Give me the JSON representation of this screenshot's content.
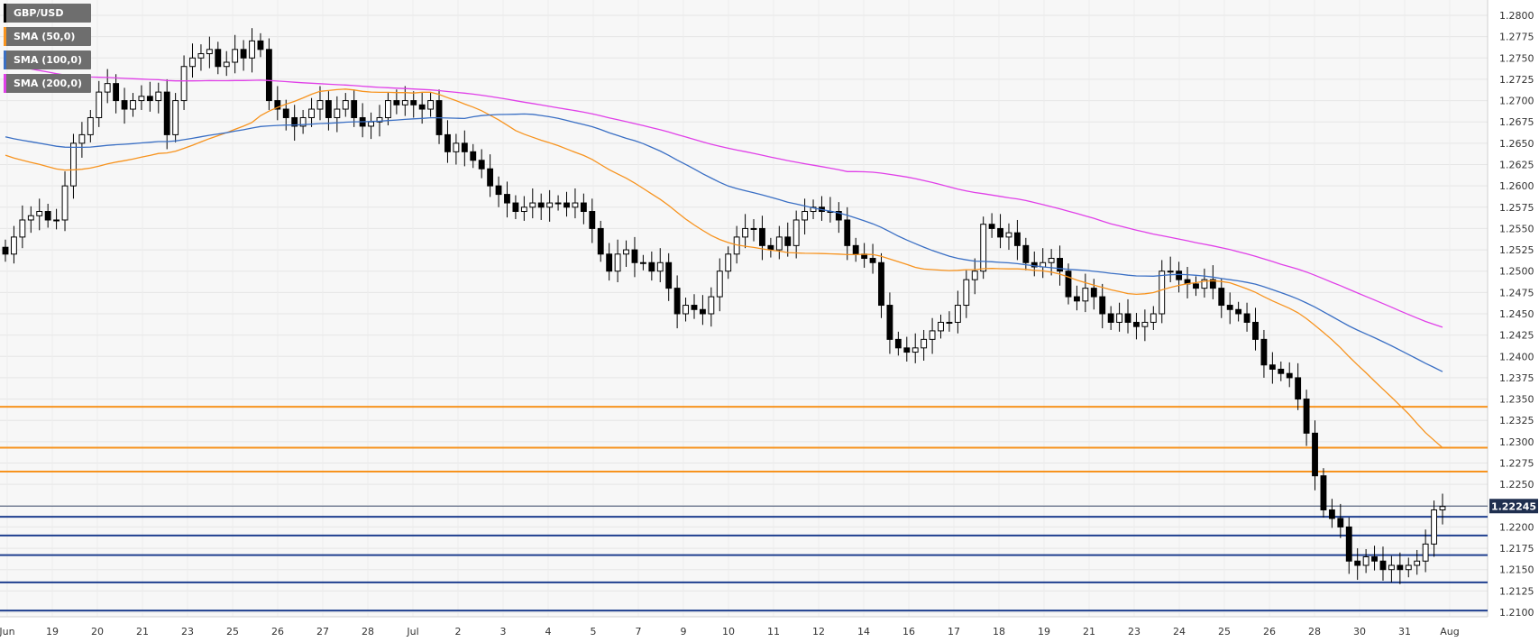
{
  "chart_data": {
    "type": "candlestick",
    "symbol": "GBP/USD",
    "current_price": "1.22245",
    "y_ticks": [
      "1.2800",
      "1.2775",
      "1.2750",
      "1.2725",
      "1.2700",
      "1.2675",
      "1.2650",
      "1.2625",
      "1.2600",
      "1.2575",
      "1.2550",
      "1.2525",
      "1.2500",
      "1.2475",
      "1.2450",
      "1.2425",
      "1.2400",
      "1.2375",
      "1.2350",
      "1.2325",
      "1.2300",
      "1.2275",
      "1.2250",
      "1.2225",
      "1.2200",
      "1.2175",
      "1.2150",
      "1.2125",
      "1.2100"
    ],
    "x_ticks": [
      "Jun",
      "19",
      "20",
      "21",
      "23",
      "25",
      "26",
      "27",
      "28",
      "Jul",
      "2",
      "3",
      "4",
      "5",
      "7",
      "9",
      "10",
      "11",
      "12",
      "14",
      "16",
      "17",
      "18",
      "19",
      "21",
      "23",
      "24",
      "25",
      "26",
      "28",
      "30",
      "31",
      "Aug"
    ],
    "legend": [
      {
        "label": "GBP/USD",
        "color": "#000000"
      },
      {
        "label": "SMA (50,0)",
        "color": "#f7931e"
      },
      {
        "label": "SMA (100,0)",
        "color": "#3a6fc4"
      },
      {
        "label": "SMA (200,0)",
        "color": "#e040e8"
      }
    ],
    "resistance_levels": [
      1.2341,
      1.2293,
      1.2265
    ],
    "support_levels": [
      1.2212,
      1.219,
      1.2167,
      1.2135,
      1.2102
    ],
    "current_level": 1.22245,
    "series_close": [
      1.252,
      1.254,
      1.256,
      1.2565,
      1.257,
      1.256,
      1.256,
      1.26,
      1.265,
      1.266,
      1.268,
      1.271,
      1.272,
      1.27,
      1.269,
      1.27,
      1.2705,
      1.27,
      1.271,
      1.266,
      1.27,
      1.274,
      1.275,
      1.2755,
      1.276,
      1.274,
      1.2745,
      1.276,
      1.275,
      1.277,
      1.276,
      1.27,
      1.269,
      1.268,
      1.267,
      1.268,
      1.269,
      1.27,
      1.268,
      1.269,
      1.27,
      1.268,
      1.267,
      1.2675,
      1.268,
      1.27,
      1.2695,
      1.27,
      1.2695,
      1.269,
      1.27,
      1.266,
      1.264,
      1.265,
      1.264,
      1.263,
      1.262,
      1.26,
      1.259,
      1.258,
      1.257,
      1.2575,
      1.258,
      1.2575,
      1.258,
      1.258,
      1.2575,
      1.258,
      1.257,
      1.255,
      1.252,
      1.25,
      1.252,
      1.2525,
      1.251,
      1.251,
      1.25,
      1.251,
      1.248,
      1.245,
      1.246,
      1.2455,
      1.245,
      1.247,
      1.25,
      1.252,
      1.254,
      1.255,
      1.255,
      1.253,
      1.2525,
      1.254,
      1.253,
      1.256,
      1.257,
      1.2575,
      1.257,
      1.257,
      1.256,
      1.253,
      1.252,
      1.2515,
      1.251,
      1.246,
      1.242,
      1.241,
      1.2405,
      1.241,
      1.242,
      1.243,
      1.244,
      1.244,
      1.246,
      1.249,
      1.25,
      1.2555,
      1.255,
      1.254,
      1.2545,
      1.253,
      1.251,
      1.2505,
      1.251,
      1.2515,
      1.25,
      1.247,
      1.2465,
      1.248,
      1.247,
      1.245,
      1.244,
      1.245,
      1.244,
      1.2435,
      1.244,
      1.245,
      1.25,
      1.25,
      1.249,
      1.2485,
      1.248,
      1.249,
      1.248,
      1.246,
      1.2455,
      1.245,
      1.244,
      1.242,
      1.239,
      1.2385,
      1.238,
      1.2375,
      1.235,
      1.231,
      1.226,
      1.222,
      1.221,
      1.22,
      1.216,
      1.2155,
      1.2165,
      1.216,
      1.215,
      1.2155,
      1.215,
      1.2155,
      1.216,
      1.218,
      1.222,
      1.2224
    ]
  }
}
